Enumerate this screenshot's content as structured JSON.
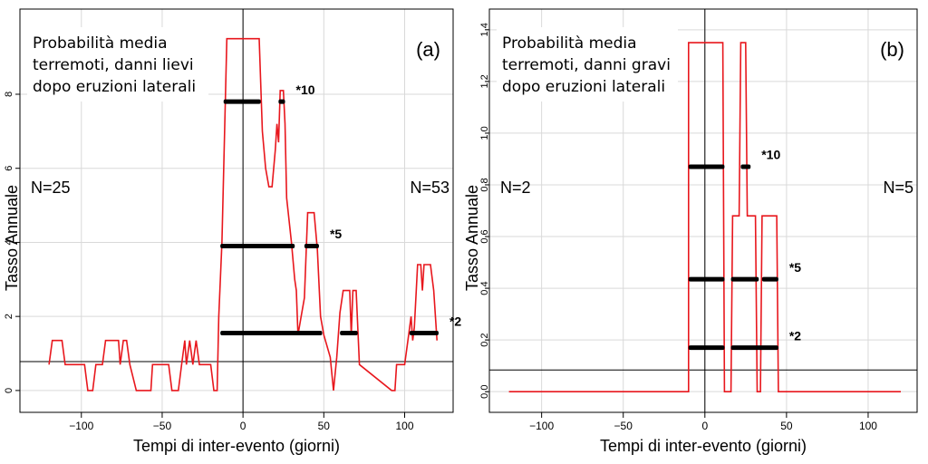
{
  "chart_data": [
    {
      "type": "line",
      "annotation_lines": [
        "Probabilità media",
        "terremoti, danni lievi",
        "dopo eruzioni laterali"
      ],
      "panel_label": "(a)",
      "n_left": "N=25",
      "n_right": "N=53",
      "x_label": "Tempi di inter-evento (giorni)",
      "y_label": "Tasso Annuale",
      "xlim": [
        -138,
        130
      ],
      "ylim": [
        -0.59,
        10.3
      ],
      "xticks": [
        {
          "value": -100,
          "label": "−100"
        },
        {
          "value": -50,
          "label": "−50"
        },
        0,
        50,
        100
      ],
      "yticks": [
        0,
        2,
        4,
        6,
        8
      ],
      "grid": true,
      "mean_line": 0.78,
      "vline": 0,
      "series": [
        {
          "color": "#e8171d",
          "x": [
            -120,
            -118,
            -112,
            -110,
            -98,
            -96,
            -93,
            -91,
            -87,
            -85,
            -77,
            -76,
            -74,
            -72,
            -70,
            -66,
            -57,
            -56,
            -46,
            -44,
            -40,
            -38,
            -36,
            -35,
            -33,
            -31,
            -29,
            -27,
            -20,
            -18,
            -16,
            -15,
            -13,
            -10,
            10,
            12,
            14,
            16,
            18,
            20,
            21,
            22,
            23,
            25,
            26,
            27,
            30,
            32,
            33,
            34,
            36,
            38,
            40,
            44,
            46,
            48,
            50,
            54,
            56,
            58,
            60,
            62,
            66,
            67,
            68,
            70,
            72,
            92,
            94,
            95,
            100,
            102,
            104,
            105,
            106,
            108,
            110,
            111,
            112,
            116,
            118,
            120
          ],
          "values": [
            0.7,
            1.35,
            1.35,
            0.7,
            0.7,
            0,
            0,
            0.7,
            0.7,
            1.35,
            1.35,
            0.7,
            1.35,
            1.35,
            0.7,
            0,
            0,
            0.7,
            0.7,
            0,
            0,
            0.7,
            1.35,
            0.7,
            1.35,
            0.7,
            1.35,
            0.7,
            0.7,
            0,
            0,
            2,
            4,
            9.5,
            9.5,
            7,
            6,
            5.5,
            5.5,
            6.5,
            7.2,
            6.7,
            8.1,
            8.1,
            7.2,
            5.2,
            4,
            3,
            2.7,
            1.5,
            2,
            2.5,
            4.8,
            4.8,
            3.8,
            2,
            1.5,
            0.9,
            0,
            0.9,
            2.1,
            2.7,
            2.7,
            1.5,
            2.7,
            2.7,
            0.7,
            0,
            0,
            0.7,
            0.7,
            1.35,
            2,
            1.35,
            1.7,
            3.4,
            3.4,
            2.7,
            3.4,
            3.4,
            2.7,
            1.35
          ]
        }
      ],
      "intervals": [
        {
          "label": "*10",
          "y": 7.8,
          "segments": [
            [
              -12,
              11
            ],
            [
              22,
              26
            ]
          ]
        },
        {
          "label": "*5",
          "y": 3.9,
          "segments": [
            [
              -14,
              32
            ],
            [
              38,
              47
            ]
          ]
        },
        {
          "label": "*2",
          "y": 1.55,
          "segments": [
            [
              -14,
              49
            ],
            [
              60,
              71
            ],
            [
              103,
              121
            ]
          ]
        }
      ]
    },
    {
      "type": "line",
      "annotation_lines": [
        "Probabilità media",
        "terremoti, danni gravi",
        "dopo eruzioni laterali"
      ],
      "panel_label": "(b)",
      "n_left": "N=2",
      "n_right": "N=5",
      "x_label": "Tempi di inter-evento (giorni)",
      "y_label": "Tasso Annuale",
      "xlim": [
        -132,
        130
      ],
      "ylim": [
        -0.08,
        1.48
      ],
      "xticks": [
        {
          "value": -100,
          "label": "−100"
        },
        {
          "value": -50,
          "label": "−50"
        },
        0,
        50,
        100
      ],
      "yticks": [
        {
          "value": 0,
          "label": "0.0"
        },
        0.2,
        0.4,
        0.6,
        0.8,
        {
          "value": 1,
          "label": "1.0"
        },
        1.2,
        1.4
      ],
      "grid": true,
      "mean_line": 0.084,
      "vline": 0,
      "series": [
        {
          "color": "#e8171d",
          "x": [
            -120,
            -10,
            -10,
            11,
            12,
            16,
            17,
            21,
            22,
            25,
            26,
            31,
            32,
            34,
            35,
            44,
            45,
            120
          ],
          "values": [
            0,
            0,
            1.35,
            1.35,
            0,
            0,
            0.68,
            0.68,
            1.35,
            1.35,
            0.68,
            0.68,
            0,
            0,
            0.68,
            0.68,
            0,
            0
          ]
        }
      ],
      "intervals": [
        {
          "label": "*10",
          "y": 0.87,
          "segments": [
            [
              -10,
              12
            ],
            [
              22,
              28
            ]
          ]
        },
        {
          "label": "*5",
          "y": 0.435,
          "segments": [
            [
              -10,
              12
            ],
            [
              16,
              33
            ],
            [
              35,
              45
            ]
          ]
        },
        {
          "label": "*2",
          "y": 0.17,
          "segments": [
            [
              -10,
              12
            ],
            [
              16,
              45
            ]
          ]
        }
      ]
    }
  ]
}
